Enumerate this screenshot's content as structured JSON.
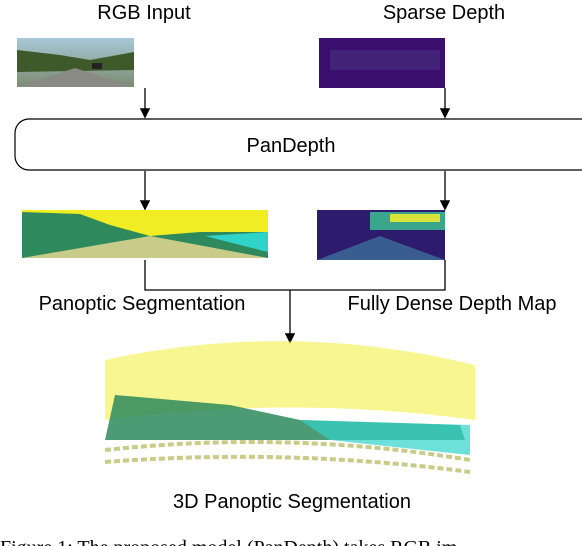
{
  "inputs": {
    "rgb": "RGB Input",
    "sparse": "Sparse Depth"
  },
  "model": "PanDepth",
  "outputs": {
    "segmentation": "Panoptic Segmentation",
    "depth": "Fully Dense Depth Map"
  },
  "result": "3D Panoptic Segmentation",
  "caption": "Figure 1: The proposed model (PanDepth) takes RGB im"
}
